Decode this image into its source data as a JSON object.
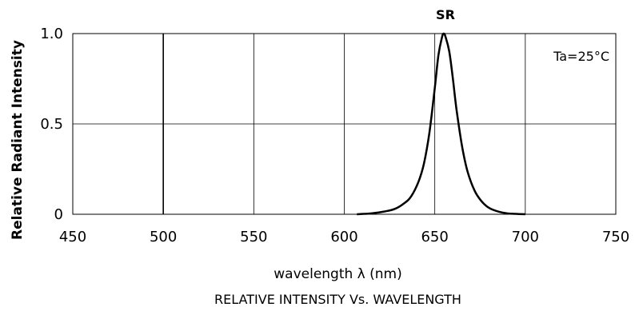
{
  "chart_data": {
    "type": "line",
    "title": "RELATIVE INTENSITY Vs. WAVELENGTH",
    "xlabel": "wavelength λ (nm)",
    "ylabel": "Relative Radiant Intensity",
    "annotation": "Ta=25°C",
    "xlim": [
      450,
      750
    ],
    "ylim": [
      0,
      1.0
    ],
    "x_ticks": [
      "450",
      "500",
      "550",
      "600",
      "650",
      "700",
      "750"
    ],
    "y_ticks": [
      "0",
      "0.5",
      "1.0"
    ],
    "grid": true,
    "series": [
      {
        "name": "SR",
        "x": [
          607,
          615,
          622,
          628,
          633,
          637,
          641,
          644,
          647,
          650,
          652,
          654,
          655,
          656,
          658,
          660,
          662,
          665,
          668,
          672,
          676,
          680,
          685,
          690,
          695,
          700
        ],
        "y": [
          0.0,
          0.005,
          0.015,
          0.03,
          0.06,
          0.1,
          0.18,
          0.28,
          0.45,
          0.7,
          0.88,
          0.98,
          1.0,
          0.98,
          0.9,
          0.75,
          0.58,
          0.38,
          0.24,
          0.13,
          0.07,
          0.035,
          0.015,
          0.005,
          0.002,
          0.0
        ]
      }
    ]
  }
}
